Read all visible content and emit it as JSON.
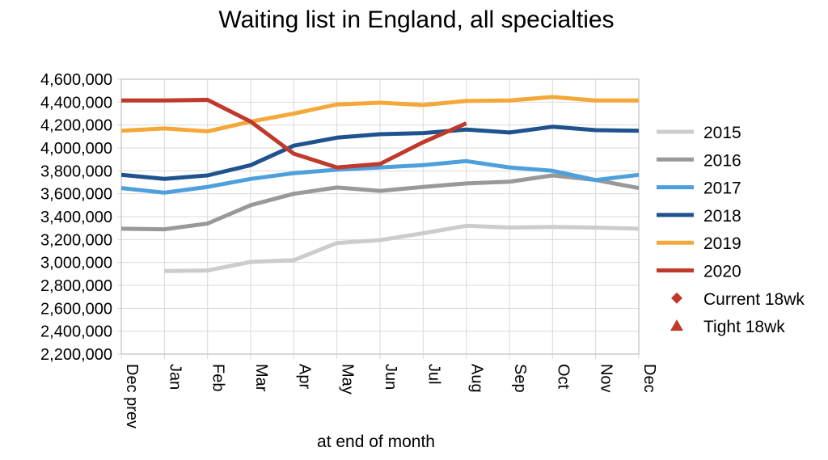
{
  "chart_data": {
    "type": "line",
    "title": "Waiting list in England, all specialties",
    "xlabel": "at end of month",
    "ylabel": "",
    "categories": [
      "Dec prev",
      "Jan",
      "Feb",
      "Mar",
      "Apr",
      "May",
      "Jun",
      "Jul",
      "Aug",
      "Sep",
      "Oct",
      "Nov",
      "Dec"
    ],
    "ylim": [
      2200000,
      4600000
    ],
    "yticks": [
      2200000,
      2400000,
      2600000,
      2800000,
      3000000,
      3200000,
      3400000,
      3600000,
      3800000,
      4000000,
      4200000,
      4400000,
      4600000
    ],
    "ytick_labels": [
      "2,200,000",
      "2,400,000",
      "2,600,000",
      "2,800,000",
      "3,000,000",
      "3,200,000",
      "3,400,000",
      "3,600,000",
      "3,800,000",
      "4,000,000",
      "4,200,000",
      "4,400,000",
      "4,600,000"
    ],
    "grid": true,
    "legend_position": "right",
    "series": [
      {
        "name": "2015",
        "color": "#cccccc",
        "values": [
          null,
          2925000,
          2930000,
          3005000,
          3020000,
          3170000,
          3195000,
          3255000,
          3320000,
          3305000,
          3310000,
          3305000,
          3295000
        ]
      },
      {
        "name": "2016",
        "color": "#999999",
        "values": [
          3295000,
          3290000,
          3340000,
          3500000,
          3600000,
          3655000,
          3625000,
          3660000,
          3690000,
          3705000,
          3760000,
          3720000,
          3650000
        ]
      },
      {
        "name": "2017",
        "color": "#4ea0dd",
        "values": [
          3650000,
          3610000,
          3660000,
          3730000,
          3780000,
          3810000,
          3830000,
          3850000,
          3885000,
          3830000,
          3800000,
          3720000,
          3765000
        ]
      },
      {
        "name": "2018",
        "color": "#1f538d",
        "values": [
          3765000,
          3730000,
          3760000,
          3850000,
          4020000,
          4090000,
          4120000,
          4130000,
          4160000,
          4135000,
          4185000,
          4155000,
          4150000
        ]
      },
      {
        "name": "2019",
        "color": "#f5a83a",
        "values": [
          4150000,
          4170000,
          4145000,
          4230000,
          4300000,
          4380000,
          4395000,
          4375000,
          4410000,
          4415000,
          4445000,
          4415000,
          4415000
        ]
      },
      {
        "name": "2020",
        "color": "#c0392b",
        "values": [
          4415000,
          4415000,
          4420000,
          4230000,
          3950000,
          3830000,
          3860000,
          4050000,
          4215000,
          null,
          null,
          null,
          null
        ]
      }
    ],
    "marker_legend": [
      {
        "name": "Current 18wk",
        "marker": "diamond",
        "color": "#c0392b"
      },
      {
        "name": "Tight 18wk",
        "marker": "triangle",
        "color": "#c0392b"
      }
    ]
  }
}
